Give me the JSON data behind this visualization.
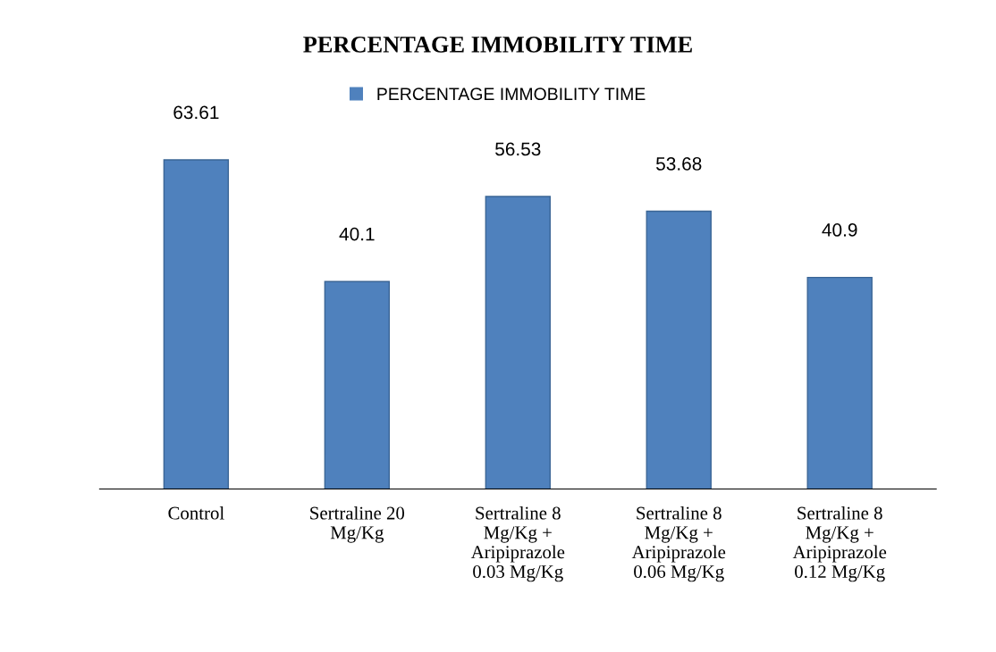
{
  "chart_data": {
    "type": "bar",
    "title": "PERCENTAGE IMMOBILITY TIME",
    "categories": [
      "Control",
      "Sertraline 20\nMg/Kg",
      "Sertraline 8\nMg/Kg +\nAripiprazole\n0.03 Mg/Kg",
      "Sertraline 8\nMg/Kg +\nAripiprazole\n0.06 Mg/Kg",
      "Sertraline 8\nMg/Kg +\nAripiprazole\n0.12 Mg/Kg"
    ],
    "series": [
      {
        "name": "PERCENTAGE IMMOBILITY TIME",
        "color": "#4f81bd",
        "values": [
          63.61,
          40.1,
          56.53,
          53.68,
          40.9
        ]
      }
    ],
    "data_labels": true,
    "legend": "top",
    "tick_labels": "x"
  }
}
